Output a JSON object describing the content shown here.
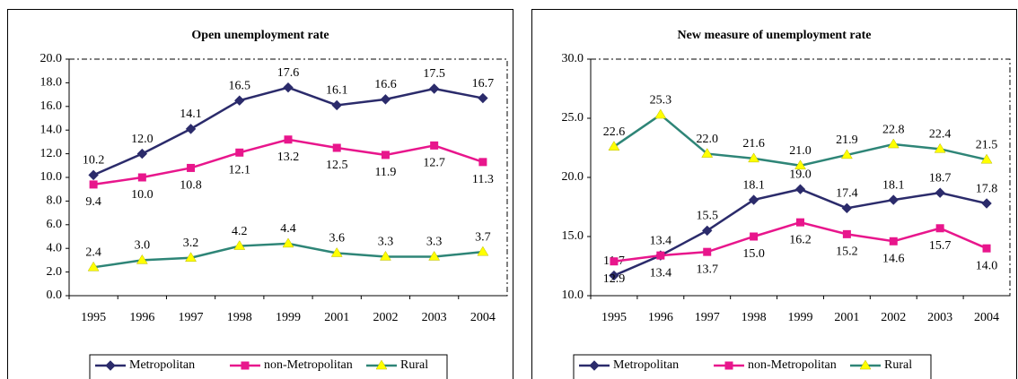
{
  "chart_data": [
    {
      "type": "line",
      "title": "Open unemployment rate",
      "categories": [
        "1995",
        "1996",
        "1997",
        "1998",
        "1999",
        "2001",
        "2002",
        "2003",
        "2004"
      ],
      "ylim": [
        0,
        20
      ],
      "yticks": [
        {
          "value": 0,
          "label": "0.0"
        },
        {
          "value": 2,
          "label": "2.0"
        },
        {
          "value": 4,
          "label": "4.0"
        },
        {
          "value": 6,
          "label": "6.0"
        },
        {
          "value": 8,
          "label": "8.0"
        },
        {
          "value": 10,
          "label": "10.0"
        },
        {
          "value": 12,
          "label": "12.0"
        },
        {
          "value": 14,
          "label": "14.0"
        },
        {
          "value": 16,
          "label": "16.0"
        },
        {
          "value": 18,
          "label": "18.0"
        },
        {
          "value": 20,
          "label": "20.0"
        }
      ],
      "legend": "bottom",
      "series": [
        {
          "name": "Metropolitan",
          "color": "#2b2b6b",
          "marker": "diamond",
          "marker_color": "#2b2b6b",
          "values": [
            10.2,
            12.0,
            14.1,
            16.5,
            17.6,
            16.1,
            16.6,
            17.5,
            16.7
          ],
          "value_labels": [
            "10.2",
            "12.0",
            "14.1",
            "16.5",
            "17.6",
            "16.1",
            "16.6",
            "17.5",
            "16.7"
          ]
        },
        {
          "name": "non-Metropolitan",
          "color": "#e8168c",
          "marker": "square",
          "marker_color": "#e8168c",
          "values": [
            9.4,
            10.0,
            10.8,
            12.1,
            13.2,
            12.5,
            11.9,
            12.7,
            11.3
          ],
          "value_labels": [
            "9.4",
            "10.0",
            "10.8",
            "12.1",
            "13.2",
            "12.5",
            "11.9",
            "12.7",
            "11.3"
          ]
        },
        {
          "name": "Rural",
          "color": "#2e8577",
          "marker": "triangle",
          "marker_color": "#ffff00",
          "values": [
            2.4,
            3.0,
            3.2,
            4.2,
            4.4,
            3.6,
            3.3,
            3.3,
            3.7
          ],
          "value_labels": [
            "2.4",
            "3.0",
            "3.2",
            "4.2",
            "4.4",
            "3.6",
            "3.3",
            "3.3",
            "3.7"
          ]
        }
      ]
    },
    {
      "type": "line",
      "title": "New measure of unemployment rate",
      "categories": [
        "1995",
        "1996",
        "1997",
        "1998",
        "1999",
        "2001",
        "2002",
        "2003",
        "2004"
      ],
      "ylim": [
        10,
        30
      ],
      "yticks": [
        {
          "value": 10,
          "label": "10.0"
        },
        {
          "value": 15,
          "label": "15.0"
        },
        {
          "value": 20,
          "label": "20.0"
        },
        {
          "value": 25,
          "label": "25.0"
        },
        {
          "value": 30,
          "label": "30.0"
        }
      ],
      "legend": "bottom",
      "series": [
        {
          "name": "Metropolitan",
          "color": "#2b2b6b",
          "marker": "diamond",
          "marker_color": "#2b2b6b",
          "values": [
            11.7,
            13.4,
            15.5,
            18.1,
            19.0,
            17.4,
            18.1,
            18.7,
            17.8
          ],
          "value_labels": [
            "11.7",
            "13.4",
            "15.5",
            "18.1",
            "19.0",
            "17.4",
            "18.1",
            "18.7",
            "17.8"
          ]
        },
        {
          "name": "non-Metropolitan",
          "color": "#e8168c",
          "marker": "square",
          "marker_color": "#e8168c",
          "values": [
            12.9,
            13.4,
            13.7,
            15.0,
            16.2,
            15.2,
            14.6,
            15.7,
            14.0
          ],
          "value_labels": [
            "12.9",
            "13.4",
            "13.7",
            "15.0",
            "16.2",
            "15.2",
            "14.6",
            "15.7",
            "14.0"
          ]
        },
        {
          "name": "Rural",
          "color": "#2e8577",
          "marker": "triangle",
          "marker_color": "#ffff00",
          "values": [
            22.6,
            25.3,
            22.0,
            21.6,
            21.0,
            21.9,
            22.8,
            22.4,
            21.5
          ],
          "value_labels": [
            "22.6",
            "25.3",
            "22.0",
            "21.6",
            "21.0",
            "21.9",
            "22.8",
            "22.4",
            "21.5"
          ]
        }
      ]
    }
  ]
}
